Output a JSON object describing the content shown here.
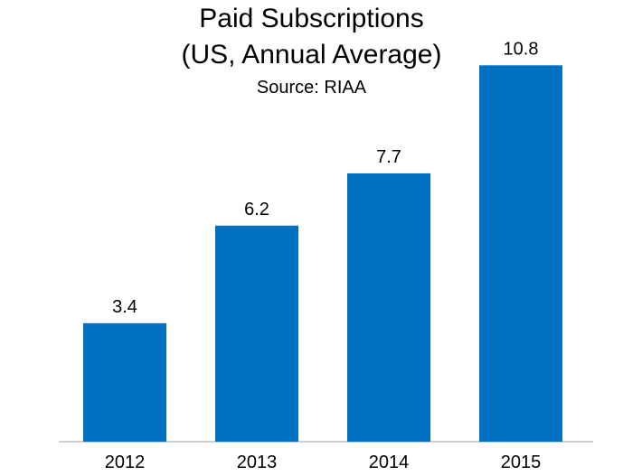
{
  "chart_data": {
    "type": "bar",
    "title": "Paid Subscriptions",
    "subtitle": "(US, Annual Average)",
    "source": "Source: RIAA",
    "categories": [
      "2012",
      "2013",
      "2014",
      "2015"
    ],
    "values": [
      3.4,
      6.2,
      7.7,
      10.8
    ],
    "value_labels": [
      "3.4",
      "6.2",
      "7.7",
      "10.8"
    ],
    "ylim": [
      0,
      12
    ],
    "xlabel": "",
    "ylabel": "",
    "grid": false,
    "legend": "none",
    "bar_color": "#0070c0"
  }
}
